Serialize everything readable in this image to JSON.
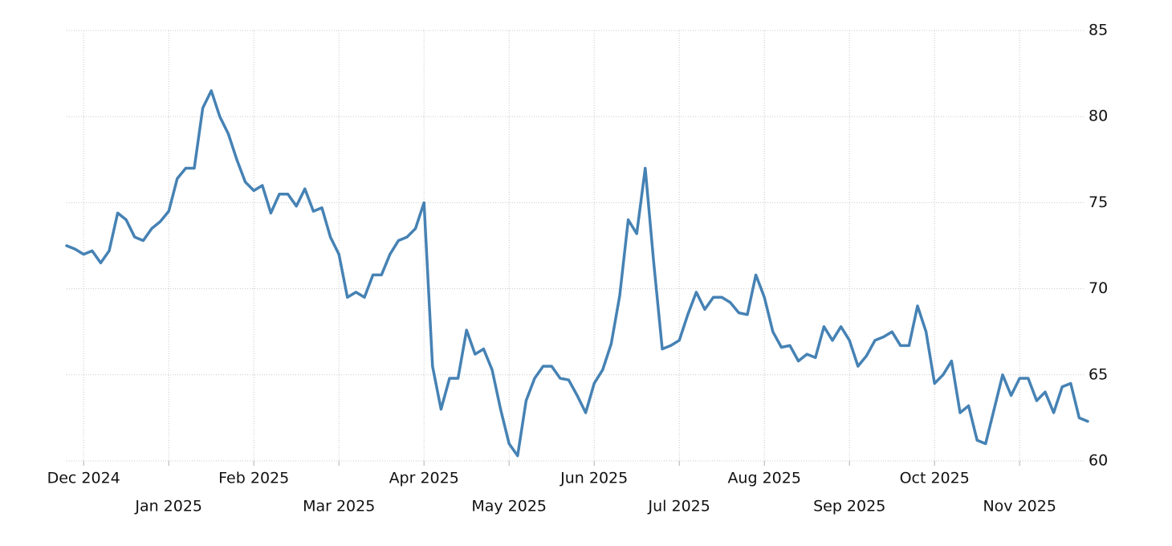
{
  "chart_data": {
    "type": "line",
    "categories": [
      null,
      null,
      "Dec 2024",
      null,
      null,
      null,
      null,
      null,
      null,
      null,
      null,
      null,
      "Jan 2025",
      null,
      null,
      null,
      null,
      null,
      null,
      null,
      null,
      null,
      "Feb 2025",
      null,
      null,
      null,
      null,
      null,
      null,
      null,
      null,
      null,
      "Mar 2025",
      null,
      null,
      null,
      null,
      null,
      null,
      null,
      null,
      null,
      "Apr 2025",
      null,
      null,
      null,
      null,
      null,
      null,
      null,
      null,
      null,
      "May 2025",
      null,
      null,
      null,
      null,
      null,
      null,
      null,
      null,
      null,
      "Jun 2025",
      null,
      null,
      null,
      null,
      null,
      null,
      null,
      null,
      null,
      "Jul 2025",
      null,
      null,
      null,
      null,
      null,
      null,
      null,
      null,
      null,
      "Aug 2025",
      null,
      null,
      null,
      null,
      null,
      null,
      null,
      null,
      null,
      "Sep 2025",
      null,
      null,
      null,
      null,
      null,
      null,
      null,
      null,
      null,
      "Oct 2025",
      null,
      null,
      null,
      null,
      null,
      null,
      null,
      null,
      null,
      "Nov 2025",
      null,
      null,
      null,
      null,
      null,
      null,
      null,
      null
    ],
    "series": [
      {
        "color": "#4682b4",
        "values": [
          72.5,
          72.3,
          72.0,
          72.2,
          71.5,
          72.2,
          74.4,
          74.0,
          73.0,
          72.8,
          73.5,
          73.9,
          74.5,
          76.4,
          77.0,
          77.0,
          80.5,
          81.5,
          80.0,
          79.0,
          77.5,
          76.2,
          75.7,
          76.0,
          74.4,
          75.5,
          75.5,
          74.8,
          75.8,
          74.5,
          74.7,
          73.0,
          72.0,
          69.5,
          69.8,
          69.5,
          70.8,
          70.8,
          72.0,
          72.8,
          73.0,
          73.5,
          75.0,
          65.5,
          63.0,
          64.8,
          64.8,
          67.6,
          66.2,
          66.5,
          65.3,
          63.0,
          61.0,
          60.3,
          63.5,
          64.8,
          65.5,
          65.5,
          64.8,
          64.7,
          63.8,
          62.8,
          64.5,
          65.3,
          66.8,
          69.6,
          74.0,
          73.2,
          77.0,
          71.5,
          66.5,
          66.7,
          67.0,
          68.5,
          69.8,
          68.8,
          69.5,
          69.5,
          69.2,
          68.6,
          68.5,
          70.8,
          69.5,
          67.5,
          66.6,
          66.7,
          65.8,
          66.2,
          66.0,
          67.8,
          67.0,
          67.8,
          67.0,
          65.5,
          66.1,
          67.0,
          67.2,
          67.5,
          66.7,
          66.7,
          69.0,
          67.5,
          64.5,
          65.0,
          65.8,
          62.8,
          63.2,
          61.2,
          61.0,
          63.0,
          65.0,
          63.8,
          64.8,
          64.8,
          63.5,
          64.0,
          62.8,
          64.3,
          64.5,
          62.5,
          62.3
        ]
      }
    ],
    "ylim": [
      60,
      85
    ],
    "yticks": [
      60,
      65,
      70,
      75,
      80,
      85
    ],
    "grid": true
  }
}
